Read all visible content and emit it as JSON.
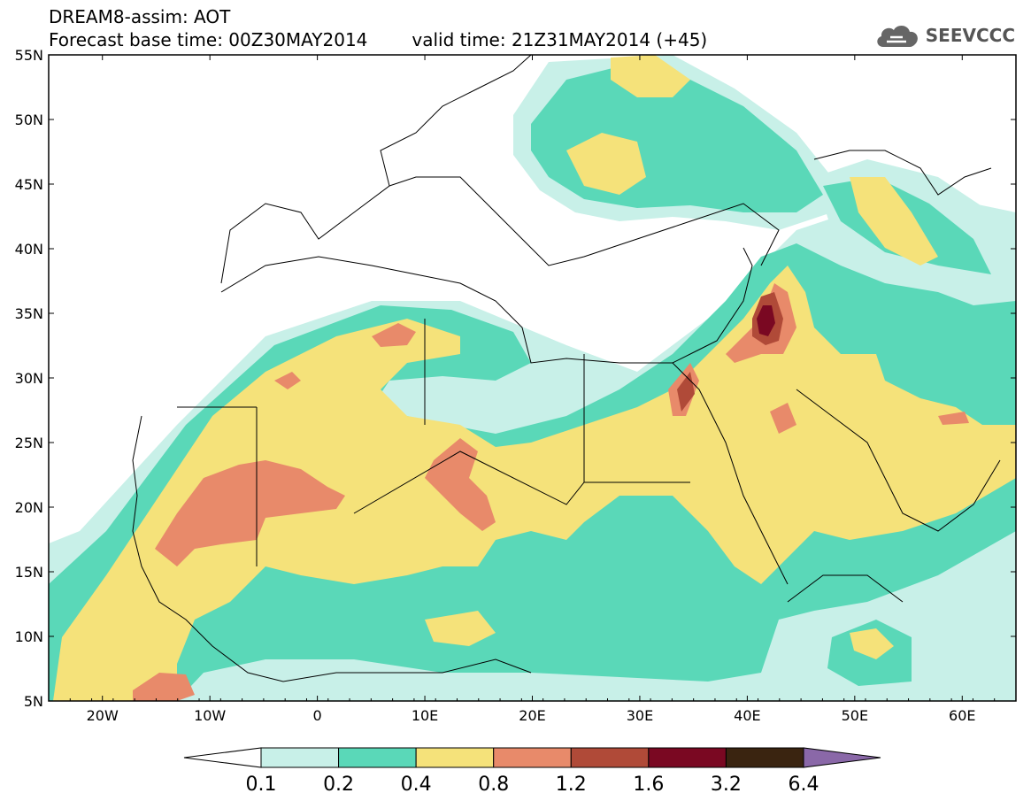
{
  "header": {
    "line1": "DREAM8-assim: AOT",
    "line2_base": "Forecast base time: 00Z30MAY2014",
    "line2_valid": "valid time: 21Z31MAY2014 (+45)"
  },
  "logo": {
    "text": "SEEVCCC",
    "icon": "cloud-icon"
  },
  "map": {
    "lat_labels": [
      "55N",
      "50N",
      "45N",
      "40N",
      "35N",
      "30N",
      "25N",
      "20N",
      "15N",
      "10N",
      "5N"
    ],
    "lon_labels": [
      "20W",
      "10W",
      "0",
      "10E",
      "20E",
      "30E",
      "40E",
      "50E",
      "60E"
    ],
    "lat_range": [
      5,
      55
    ],
    "lon_range": [
      -25,
      65
    ]
  },
  "colorbar": {
    "labels": [
      "0.1",
      "0.2",
      "0.4",
      "0.8",
      "1.2",
      "1.6",
      "3.2",
      "6.4"
    ],
    "colors": [
      "#ffffff",
      "#c8f0e8",
      "#5ad8b8",
      "#f5e27a",
      "#e88a6a",
      "#b04a38",
      "#7a0822",
      "#3a2410",
      "#8a68a8"
    ]
  }
}
